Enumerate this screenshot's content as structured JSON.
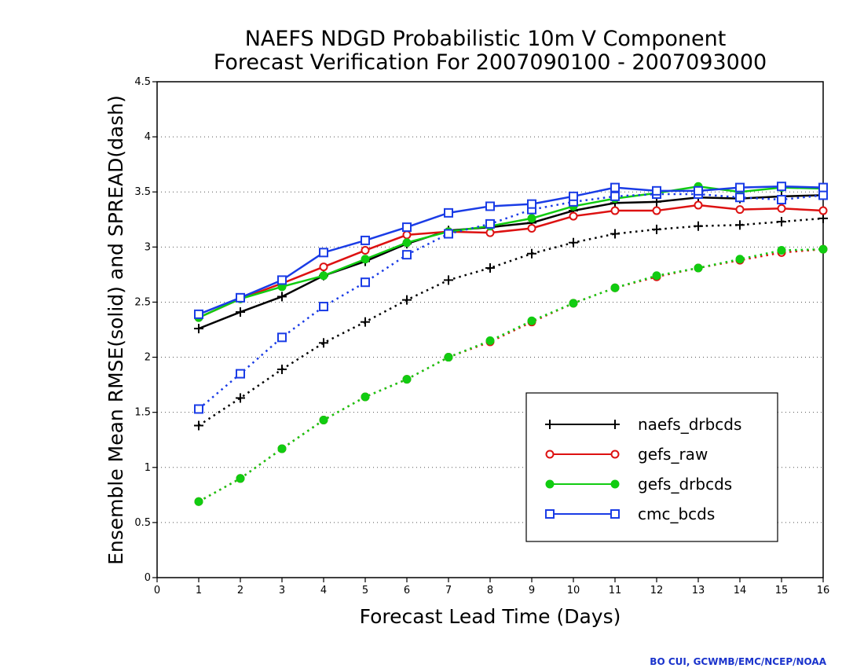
{
  "chart_data": {
    "type": "line",
    "title": [
      "NAEFS NDGD Probabilistic 10m V Component",
      "Forecast Verification For 2007090100 - 2007093000"
    ],
    "xlabel": "Forecast Lead Time (Days)",
    "ylabel": "Ensemble Mean RMSE(solid) and SPREAD(dash)",
    "xlim": [
      0,
      16
    ],
    "ylim": [
      0,
      4.5
    ],
    "x_ticks": [
      "0",
      "1",
      "2",
      "3",
      "4",
      "5",
      "6",
      "7",
      "8",
      "9",
      "10",
      "11",
      "12",
      "13",
      "14",
      "15",
      "16"
    ],
    "y_ticks": [
      "0",
      "0.5",
      "1",
      "1.5",
      "2",
      "2.5",
      "3",
      "3.5",
      "4",
      "4.5"
    ],
    "grid": "horizontal dotted",
    "legend_position": "lower-right",
    "x": [
      1,
      2,
      3,
      4,
      5,
      6,
      7,
      8,
      9,
      10,
      11,
      12,
      13,
      14,
      15,
      16
    ],
    "series": [
      {
        "name": "naefs_drbcds",
        "color": "#000000",
        "marker": "plus",
        "rmse": [
          2.26,
          2.41,
          2.55,
          2.74,
          2.87,
          3.03,
          3.15,
          3.18,
          3.22,
          3.33,
          3.4,
          3.41,
          3.45,
          3.44,
          3.46,
          3.47
        ],
        "spread": [
          1.38,
          1.63,
          1.89,
          2.13,
          2.32,
          2.52,
          2.7,
          2.81,
          2.94,
          3.04,
          3.12,
          3.16,
          3.19,
          3.2,
          3.23,
          3.26
        ]
      },
      {
        "name": "gefs_raw",
        "color": "#dd1111",
        "marker": "circle",
        "rmse": [
          2.36,
          2.53,
          2.67,
          2.82,
          2.97,
          3.11,
          3.14,
          3.13,
          3.17,
          3.28,
          3.33,
          3.33,
          3.38,
          3.34,
          3.35,
          3.33
        ],
        "spread": [
          0.69,
          0.9,
          1.17,
          1.43,
          1.64,
          1.8,
          2.0,
          2.14,
          2.32,
          2.49,
          2.63,
          2.73,
          2.81,
          2.88,
          2.95,
          2.98
        ]
      },
      {
        "name": "gefs_drbcds",
        "color": "#11cc11",
        "marker": "dot",
        "rmse": [
          2.36,
          2.53,
          2.64,
          2.74,
          2.89,
          3.04,
          3.14,
          3.19,
          3.26,
          3.37,
          3.44,
          3.49,
          3.55,
          3.5,
          3.54,
          3.53
        ],
        "spread": [
          0.69,
          0.9,
          1.17,
          1.43,
          1.64,
          1.8,
          2.0,
          2.15,
          2.33,
          2.49,
          2.63,
          2.74,
          2.81,
          2.89,
          2.97,
          2.98
        ]
      },
      {
        "name": "cmc_bcds",
        "color": "#1a3ce6",
        "marker": "square",
        "rmse": [
          2.39,
          2.54,
          2.7,
          2.95,
          3.06,
          3.18,
          3.31,
          3.37,
          3.39,
          3.46,
          3.54,
          3.51,
          3.51,
          3.54,
          3.55,
          3.54
        ],
        "spread": [
          1.53,
          1.85,
          2.18,
          2.46,
          2.68,
          2.93,
          3.12,
          3.21,
          3.34,
          3.41,
          3.46,
          3.48,
          3.48,
          3.45,
          3.43,
          3.47
        ]
      }
    ]
  },
  "credit": "BO CUI, GCWMB/EMC/NCEP/NOAA"
}
